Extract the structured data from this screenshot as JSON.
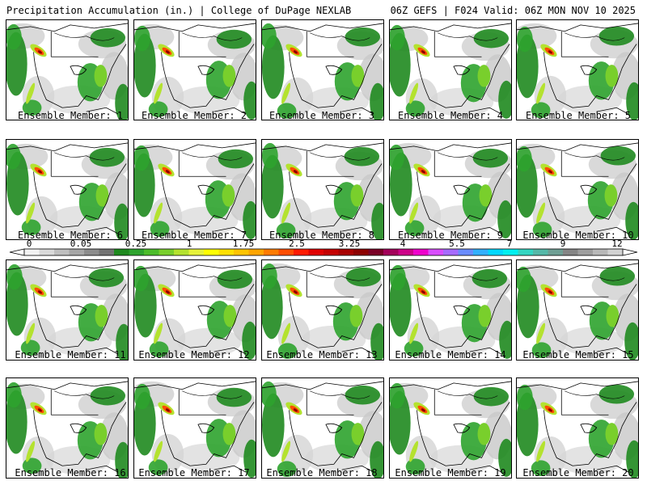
{
  "header": {
    "title": "Precipitation Accumulation (in.) | College of DuPage NEXLAB",
    "valid": "06Z GEFS | F024 Valid: 06Z MON NOV 10 2025"
  },
  "members": [
    {
      "label": "Ensemble Member: 1"
    },
    {
      "label": "Ensemble Member: 2"
    },
    {
      "label": "Ensemble Member: 3"
    },
    {
      "label": "Ensemble Member: 4"
    },
    {
      "label": "Ensemble Member: 5"
    },
    {
      "label": "Ensemble Member: 6"
    },
    {
      "label": "Ensemble Member: 7"
    },
    {
      "label": "Ensemble Member: 8"
    },
    {
      "label": "Ensemble Member: 9"
    },
    {
      "label": "Ensemble Member: 10"
    },
    {
      "label": "Ensemble Member: 11"
    },
    {
      "label": "Ensemble Member: 12"
    },
    {
      "label": "Ensemble Member: 13"
    },
    {
      "label": "Ensemble Member: 14"
    },
    {
      "label": "Ensemble Member: 15"
    },
    {
      "label": "Ensemble Member: 16"
    },
    {
      "label": "Ensemble Member: 17"
    },
    {
      "label": "Ensemble Member: 18"
    },
    {
      "label": "Ensemble Member: 19"
    },
    {
      "label": "Ensemble Member: 20"
    }
  ],
  "legend": {
    "tick_labels": [
      "0",
      "0.05",
      "0.25",
      "1",
      "1.75",
      "2.5",
      "3.25",
      "4",
      "5.5",
      "7",
      "9",
      "12"
    ],
    "colors": [
      "#f2f2f2",
      "#d9d9d9",
      "#bfbfbf",
      "#a6a6a6",
      "#8c8c8c",
      "#737373",
      "#1f8a1f",
      "#2ea32e",
      "#4cbc2a",
      "#79cf2c",
      "#b4e22f",
      "#e6f23a",
      "#ffff00",
      "#ffe000",
      "#ffc400",
      "#ffa500",
      "#ff7b00",
      "#ff4d00",
      "#ff1a00",
      "#e00000",
      "#c40000",
      "#a80000",
      "#8c0000",
      "#7a0026",
      "#a3005a",
      "#cc0088",
      "#ee00cc",
      "#d94dff",
      "#a66bff",
      "#6a8cff",
      "#33b0ff",
      "#00d8ff",
      "#00f0f0",
      "#33d6c2",
      "#55b8a8",
      "#6f9f94",
      "#858585",
      "#9e9e9e",
      "#b8b8b8",
      "#d2d2d2"
    ]
  }
}
